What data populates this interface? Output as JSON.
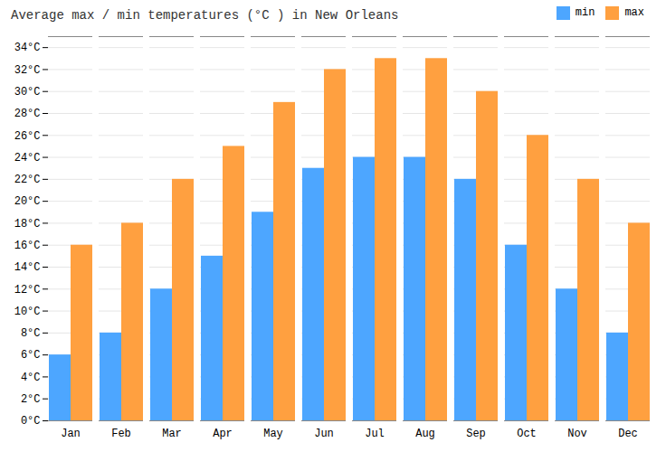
{
  "chart_data": {
    "type": "bar",
    "title": "Average max / min temperatures (°C ) in New Orleans",
    "categories": [
      "Jan",
      "Feb",
      "Mar",
      "Apr",
      "May",
      "Jun",
      "Jul",
      "Aug",
      "Sep",
      "Oct",
      "Nov",
      "Dec"
    ],
    "series": [
      {
        "name": "min",
        "color": "#4da6ff",
        "values": [
          6,
          8,
          12,
          15,
          19,
          23,
          24,
          24,
          22,
          16,
          12,
          8
        ]
      },
      {
        "name": "max",
        "color": "#ffa040",
        "values": [
          16,
          18,
          22,
          25,
          29,
          32,
          33,
          33,
          30,
          26,
          22,
          18
        ]
      }
    ],
    "ylim": [
      0,
      35
    ],
    "yticks": [
      {
        "value": 0,
        "label": "0°C"
      },
      {
        "value": 2,
        "label": "2°C"
      },
      {
        "value": 4,
        "label": "4°C"
      },
      {
        "value": 6,
        "label": "6°C"
      },
      {
        "value": 8,
        "label": "8°C"
      },
      {
        "value": 10,
        "label": "10°C"
      },
      {
        "value": 12,
        "label": "12°C"
      },
      {
        "value": 14,
        "label": "14°C"
      },
      {
        "value": 16,
        "label": "16°C"
      },
      {
        "value": 18,
        "label": "18°C"
      },
      {
        "value": 20,
        "label": "20°C"
      },
      {
        "value": 22,
        "label": "22°C"
      },
      {
        "value": 24,
        "label": "24°C"
      },
      {
        "value": 26,
        "label": "26°C"
      },
      {
        "value": 28,
        "label": "28°C"
      },
      {
        "value": 30,
        "label": "30°C"
      },
      {
        "value": 32,
        "label": "32°C"
      },
      {
        "value": 34,
        "label": "34°C"
      }
    ],
    "grid": true,
    "legend": "upper right"
  }
}
